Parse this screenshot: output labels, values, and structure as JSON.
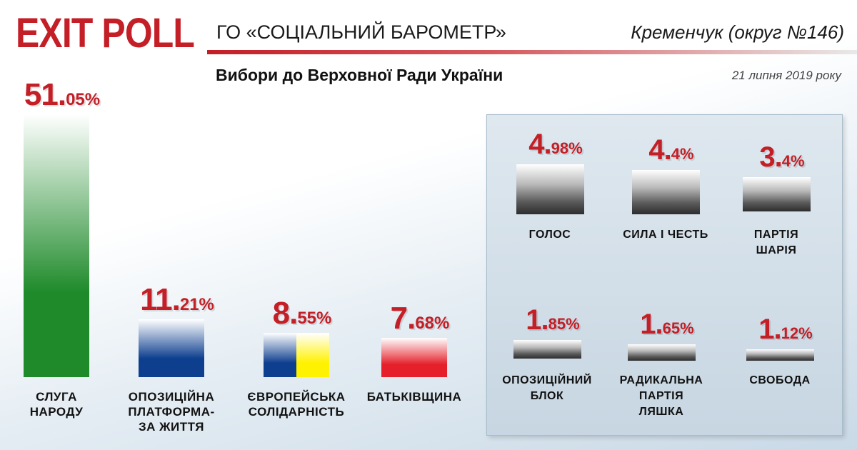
{
  "header": {
    "brand": "EXIT POLL",
    "org": "ГО «СОЦІАЛЬНИЙ БАРОМЕТР»",
    "location": "Кременчук (округ №146)",
    "subtitle": "Вибори до Верховної Ради України",
    "date": "21 липня 2019 року"
  },
  "colors": {
    "accent_red": "#c41e26",
    "green": "#1e8a2a",
    "blue": "#0e3f8f",
    "yellow": "#fff200",
    "red": "#e5202a",
    "gray": "#2d2d2d"
  },
  "chart_data": [
    {
      "type": "bar",
      "categories": [
        "СЛУГА НАРОДУ",
        "ОПОЗИЦІЙНА ПЛАТФОРМА-ЗА ЖИТТЯ",
        "ЄВРОПЕЙСЬКА СОЛІДАРНІСТЬ",
        "БАТЬКІВЩИНА"
      ],
      "values": [
        51.05,
        11.21,
        8.55,
        7.68
      ],
      "value_labels": [
        {
          "int": "51.",
          "dec": "05%"
        },
        {
          "int": "11.",
          "dec": "21%"
        },
        {
          "int": "8.",
          "dec": "55%"
        },
        {
          "int": "7.",
          "dec": "68%"
        }
      ],
      "label_lines": [
        "СЛУГА\nНАРОДУ",
        "ОПОЗИЦІЙНА\nПЛАТФОРМА-\nЗА ЖИТТЯ",
        "ЄВРОПЕЙСЬКА\nСОЛІДАРНІСТЬ",
        "БАТЬКІВЩИНА"
      ],
      "bar_colors": [
        "#1e8a2a",
        "#0e3f8f",
        "#0e3f8f|#fff200",
        "#e5202a"
      ],
      "unit": "%"
    },
    {
      "type": "bar",
      "categories": [
        "ГОЛОС",
        "СИЛА І ЧЕСТЬ",
        "ПАРТІЯ ШАРІЯ",
        "ОПОЗИЦІЙНИЙ БЛОК",
        "РАДИКАЛЬНА ПАРТІЯ ЛЯШКА",
        "СВОБОДА"
      ],
      "values": [
        4.98,
        4.4,
        3.4,
        1.85,
        1.65,
        1.12
      ],
      "value_labels": [
        {
          "int": "4.",
          "dec": "98%"
        },
        {
          "int": "4.",
          "dec": "4%"
        },
        {
          "int": "3.",
          "dec": "4%"
        },
        {
          "int": "1.",
          "dec": "85%"
        },
        {
          "int": "1.",
          "dec": "65%"
        },
        {
          "int": "1.",
          "dec": "12%"
        }
      ],
      "label_lines": [
        "ГОЛОС",
        "СИЛА І ЧЕСТЬ",
        "ПАРТІЯ\nШАРІЯ",
        "ОПОЗИЦІЙНИЙ\nБЛОК",
        "РАДИКАЛЬНА\nПАРТІЯ\nЛЯШКА",
        "СВОБОДА"
      ],
      "bar_colors": [
        "#2d2d2d",
        "#2d2d2d",
        "#2d2d2d",
        "#2d2d2d",
        "#2d2d2d",
        "#2d2d2d"
      ],
      "unit": "%"
    }
  ]
}
